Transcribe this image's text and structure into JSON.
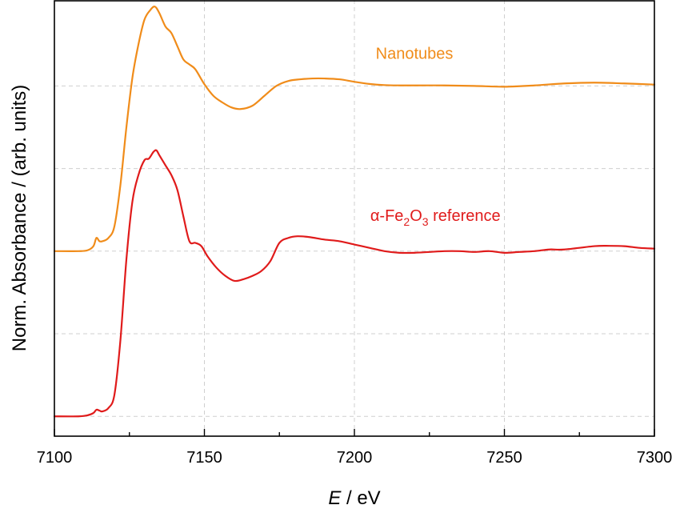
{
  "chart_data": {
    "type": "line",
    "xlabel_italic": "E",
    "xlabel_rest": " / eV",
    "ylabel": "Norm. Absorbance / (arb. units)",
    "xlim": [
      7100,
      7300
    ],
    "ylim": [
      -0.12,
      2.52
    ],
    "x_ticks": [
      7100,
      7150,
      7200,
      7250,
      7300
    ],
    "x_tick_labels": [
      "7100",
      "7150",
      "7200",
      "7250",
      "7300"
    ],
    "minor_x_step": 25,
    "y_grid": [
      0,
      0.5,
      1,
      1.5,
      2
    ],
    "y_ticks_shown": false,
    "grid": true,
    "series": [
      {
        "name": "Nanotubes",
        "label_main": "Nanotubes",
        "color": "#f08c1a",
        "points": [
          [
            7100,
            1.0
          ],
          [
            7108,
            1.0
          ],
          [
            7111,
            1.005
          ],
          [
            7113,
            1.03
          ],
          [
            7114,
            1.08
          ],
          [
            7115,
            1.06
          ],
          [
            7116,
            1.06
          ],
          [
            7118,
            1.08
          ],
          [
            7120,
            1.15
          ],
          [
            7122,
            1.4
          ],
          [
            7124,
            1.75
          ],
          [
            7126,
            2.05
          ],
          [
            7128,
            2.25
          ],
          [
            7130,
            2.4
          ],
          [
            7132,
            2.46
          ],
          [
            7133.5,
            2.48
          ],
          [
            7135,
            2.44
          ],
          [
            7137,
            2.36
          ],
          [
            7139,
            2.32
          ],
          [
            7141,
            2.24
          ],
          [
            7143,
            2.16
          ],
          [
            7145,
            2.13
          ],
          [
            7147,
            2.1
          ],
          [
            7150,
            2.01
          ],
          [
            7153,
            1.94
          ],
          [
            7156,
            1.9
          ],
          [
            7159,
            1.87
          ],
          [
            7162,
            1.86
          ],
          [
            7166,
            1.88
          ],
          [
            7170,
            1.94
          ],
          [
            7174,
            2.0
          ],
          [
            7178,
            2.03
          ],
          [
            7182,
            2.04
          ],
          [
            7186,
            2.045
          ],
          [
            7190,
            2.045
          ],
          [
            7195,
            2.04
          ],
          [
            7200,
            2.025
          ],
          [
            7205,
            2.012
          ],
          [
            7210,
            2.005
          ],
          [
            7215,
            2.003
          ],
          [
            7220,
            2.003
          ],
          [
            7230,
            2.003
          ],
          [
            7240,
            2.0
          ],
          [
            7250,
            1.995
          ],
          [
            7260,
            2.003
          ],
          [
            7270,
            2.015
          ],
          [
            7280,
            2.02
          ],
          [
            7290,
            2.015
          ],
          [
            7300,
            2.008
          ]
        ]
      },
      {
        "name": "α-Fe2O3 reference",
        "label_prefix": "α-Fe",
        "label_sub1": "2",
        "label_mid": "O",
        "label_sub2": "3",
        "label_suffix": " reference",
        "color": "#e01b1b",
        "points": [
          [
            7100,
            0.0
          ],
          [
            7108,
            0.0
          ],
          [
            7111,
            0.006
          ],
          [
            7113,
            0.02
          ],
          [
            7114,
            0.04
          ],
          [
            7115,
            0.035
          ],
          [
            7116,
            0.03
          ],
          [
            7118,
            0.05
          ],
          [
            7120,
            0.13
          ],
          [
            7122,
            0.46
          ],
          [
            7124,
            0.95
          ],
          [
            7126,
            1.3
          ],
          [
            7128,
            1.46
          ],
          [
            7130,
            1.55
          ],
          [
            7131.5,
            1.56
          ],
          [
            7133,
            1.6
          ],
          [
            7134,
            1.61
          ],
          [
            7135,
            1.58
          ],
          [
            7137,
            1.52
          ],
          [
            7139,
            1.46
          ],
          [
            7141,
            1.37
          ],
          [
            7143,
            1.21
          ],
          [
            7145,
            1.06
          ],
          [
            7147,
            1.05
          ],
          [
            7149,
            1.03
          ],
          [
            7151,
            0.97
          ],
          [
            7154,
            0.9
          ],
          [
            7157,
            0.85
          ],
          [
            7160,
            0.82
          ],
          [
            7163,
            0.83
          ],
          [
            7166,
            0.85
          ],
          [
            7169,
            0.88
          ],
          [
            7172,
            0.94
          ],
          [
            7175,
            1.05
          ],
          [
            7178,
            1.08
          ],
          [
            7181,
            1.09
          ],
          [
            7185,
            1.085
          ],
          [
            7190,
            1.07
          ],
          [
            7195,
            1.06
          ],
          [
            7200,
            1.04
          ],
          [
            7205,
            1.02
          ],
          [
            7210,
            1.0
          ],
          [
            7215,
            0.99
          ],
          [
            7220,
            0.99
          ],
          [
            7225,
            0.995
          ],
          [
            7230,
            1.0
          ],
          [
            7235,
            1.0
          ],
          [
            7240,
            0.995
          ],
          [
            7245,
            1.0
          ],
          [
            7250,
            0.99
          ],
          [
            7255,
            0.995
          ],
          [
            7260,
            1.0
          ],
          [
            7265,
            1.01
          ],
          [
            7270,
            1.01
          ],
          [
            7280,
            1.03
          ],
          [
            7285,
            1.032
          ],
          [
            7290,
            1.03
          ],
          [
            7295,
            1.02
          ],
          [
            7300,
            1.015
          ]
        ]
      }
    ]
  }
}
